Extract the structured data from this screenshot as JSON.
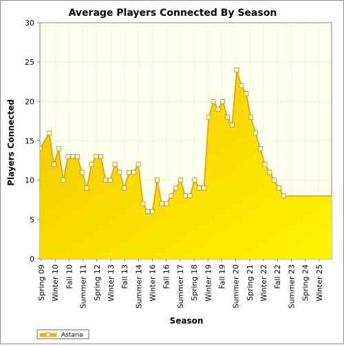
{
  "chart_data": {
    "type": "area",
    "title": "Average Players Connected By Season",
    "xlabel": "Season",
    "ylabel": "Players Connected",
    "ylim": [
      0,
      30
    ],
    "yticks": [
      0,
      5,
      10,
      15,
      20,
      25,
      30
    ],
    "x_tick_labels": [
      "Spring 09",
      "Winter 10",
      "Fall 10",
      "Summer 11",
      "Spring 12",
      "Winter 13",
      "Fall 13",
      "Summer 14",
      "Winter 16",
      "Fall 16",
      "Summer 17",
      "Spring 18",
      "Winter 19",
      "Fall 19",
      "Summer 20",
      "Spring 21",
      "Winter 22",
      "Fall 22",
      "Summer 23",
      "Spring 24",
      "Winter 25"
    ],
    "grid": true,
    "legend_position": "bottom-left",
    "colors": {
      "fill_top": "#fff400",
      "fill_bottom": "#f2c400",
      "line": "#d9a100",
      "marker_fill": "#ffffff",
      "plot_bg": "#ffffee",
      "legend_swatch": "#e8c000"
    },
    "series": [
      {
        "name": "Astaria",
        "x": [
          0.0,
          0.91,
          1.35,
          1.8,
          2.25,
          2.7,
          3.15,
          3.6,
          4.05,
          4.5,
          4.95,
          5.4,
          5.85,
          6.3,
          6.75,
          7.2,
          7.65,
          8.1,
          8.55,
          9.0,
          9.45,
          9.9,
          10.35,
          10.8,
          11.25,
          11.7,
          12.15,
          12.6,
          13.05,
          13.5,
          13.95,
          14.4,
          14.85,
          15.3,
          15.75,
          16.2,
          16.65,
          17.1,
          17.55,
          18.0,
          18.45,
          18.9,
          19.35,
          19.8,
          20.25,
          20.7,
          21.15,
          21.6,
          22.05,
          22.5,
          22.95,
          23.4,
          23.85,
          24.3,
          24.75,
          25.2,
          25.65,
          26.1,
          26.55,
          27.0,
          27.45,
          27.9
        ],
        "y": [
          14,
          16,
          12,
          14,
          10,
          13,
          13,
          13,
          11,
          9,
          12,
          13,
          13,
          10,
          10,
          12,
          11,
          9,
          11,
          11,
          12,
          7,
          6,
          6,
          10,
          7,
          7,
          8,
          9,
          10,
          8,
          8,
          10,
          9,
          9,
          18,
          20,
          19,
          20,
          18,
          17,
          24,
          22,
          21,
          18,
          16,
          14,
          12,
          11,
          10,
          9,
          8,
          7,
          6,
          6,
          6,
          6,
          6,
          6,
          6,
          6,
          6
        ],
        "x_extent": [
          0,
          28
        ],
        "points_visible": 52
      }
    ]
  }
}
